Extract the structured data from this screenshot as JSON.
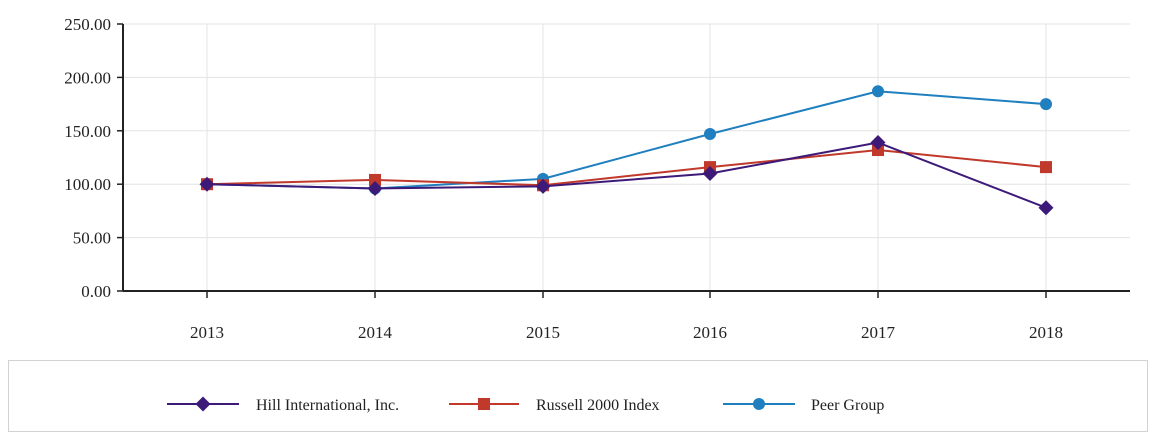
{
  "chart_data": {
    "type": "line",
    "categories": [
      "2013",
      "2014",
      "2015",
      "2016",
      "2017",
      "2018"
    ],
    "y_ticks": [
      "0.00",
      "50.00",
      "100.00",
      "150.00",
      "200.00",
      "250.00"
    ],
    "ylim": [
      0,
      250
    ],
    "grid": true,
    "legend_position": "bottom",
    "series": [
      {
        "name": "Hill International, Inc.",
        "values": [
          100,
          96,
          98,
          110,
          139,
          78
        ],
        "color": "#3d1a78",
        "marker": "diamond"
      },
      {
        "name": "Russell 2000 Index",
        "values": [
          100,
          104,
          99,
          116,
          132,
          116
        ],
        "color": "#c0392b",
        "marker": "square"
      },
      {
        "name": "Peer Group",
        "values": [
          100,
          96,
          105,
          147,
          187,
          175
        ],
        "color": "#1f7fbf",
        "marker": "circle"
      }
    ]
  }
}
